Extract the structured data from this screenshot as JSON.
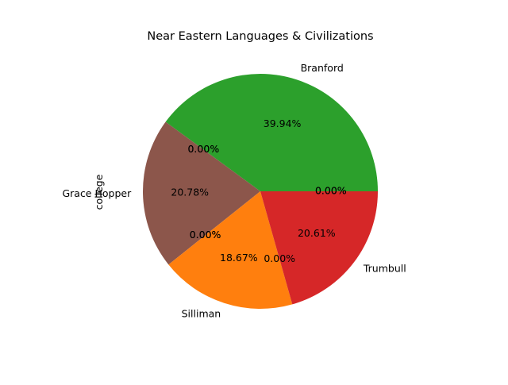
{
  "chart_data": {
    "type": "pie",
    "title": "Near Eastern Languages & Civilizations",
    "ylabel": "college",
    "legend": "none",
    "grid": false,
    "start_angle_deg": 0,
    "direction": "counterclockwise",
    "slices": [
      {
        "label": "Branford",
        "value": 39.94,
        "pct_label": "39.94%",
        "color": "#2ca02c"
      },
      {
        "label": "",
        "value": 0.0,
        "pct_label": "0.00%",
        "color": "#9467bd"
      },
      {
        "label": "",
        "value": 0.0,
        "pct_label": "0.00%",
        "color": "#8c564b"
      },
      {
        "label": "Grace Hopper",
        "value": 20.78,
        "pct_label": "20.78%",
        "color": "#8c564b"
      },
      {
        "label": "",
        "value": 0.0,
        "pct_label": "0.00%",
        "color": "#e377c2"
      },
      {
        "label": "",
        "value": 0.0,
        "pct_label": "0.00%",
        "color": "#7f7f7f"
      },
      {
        "label": "Silliman",
        "value": 18.67,
        "pct_label": "18.67%",
        "color": "#ff7f0e"
      },
      {
        "label": "",
        "value": 0.0,
        "pct_label": "0.00%",
        "color": "#bcbd22"
      },
      {
        "label": "Trumbull",
        "value": 20.61,
        "pct_label": "20.61%",
        "color": "#d62728"
      },
      {
        "label": "",
        "value": 0.0,
        "pct_label": "0.00%",
        "color": "#17becf"
      },
      {
        "label": "",
        "value": 0.0,
        "pct_label": "0.00%",
        "color": "#1f77b4"
      }
    ]
  }
}
